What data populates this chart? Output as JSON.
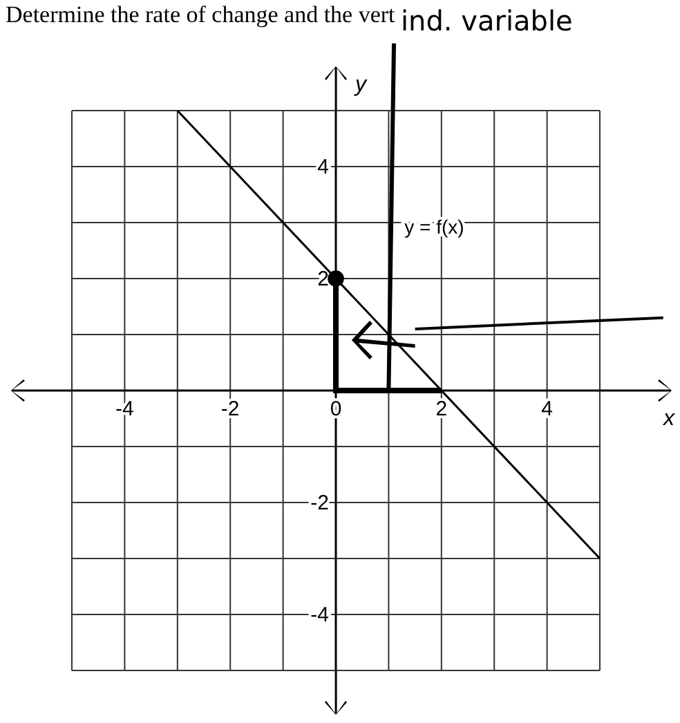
{
  "chart_data": {
    "type": "line",
    "title": "Determine the rate of change and the vert",
    "xlabel": "x",
    "ylabel": "y",
    "xlim": [
      -5,
      5
    ],
    "ylim": [
      -5,
      5
    ],
    "xticks": [
      {
        "value": -5,
        "label": null
      },
      -4,
      {
        "value": -3,
        "label": null
      },
      -2,
      {
        "value": -1,
        "label": null
      },
      0,
      {
        "value": 1,
        "label": null
      },
      2,
      {
        "value": 3,
        "label": null
      },
      4,
      {
        "value": 5,
        "label": null
      }
    ],
    "yticks": [
      {
        "value": -5,
        "label": null
      },
      -4,
      {
        "value": -3,
        "label": null
      },
      -2,
      {
        "value": -1,
        "label": null
      },
      {
        "value": 0,
        "label": null
      },
      {
        "value": 1,
        "label": null
      },
      2,
      {
        "value": 3,
        "label": null
      },
      4,
      {
        "value": 5,
        "label": null
      }
    ],
    "grid": true,
    "series": [
      {
        "name": "y = f(x)",
        "color": "#000000",
        "x": [
          -3,
          5
        ],
        "values": [
          5,
          -3
        ]
      },
      {
        "type": "scatter",
        "color": "#000000",
        "marker": "circle",
        "x": [
          0
        ],
        "values": [
          2
        ]
      }
    ],
    "annotations": [
      "ind. variable"
    ]
  }
}
